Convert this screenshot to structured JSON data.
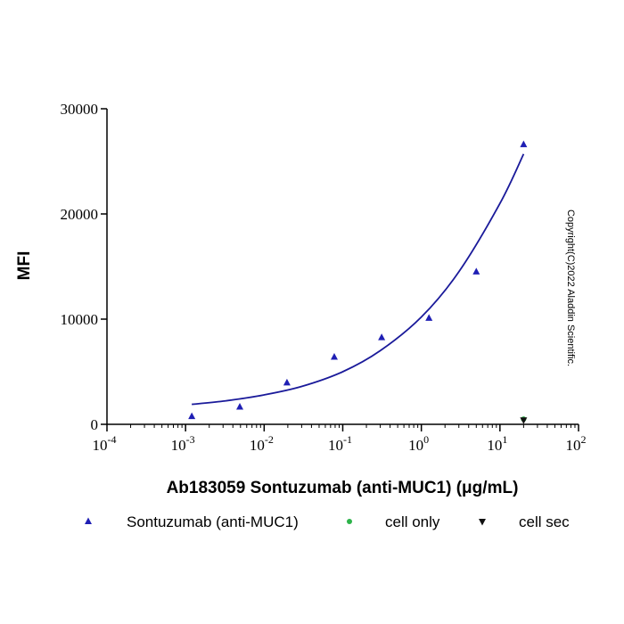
{
  "chart_data": {
    "type": "scatter",
    "title": "",
    "xlabel": "Ab183059 Sontuzumab (anti-MUC1) (μg/mL)",
    "ylabel": "MFI",
    "xscale": "log",
    "xlim": [
      0.0001,
      100
    ],
    "ylim": [
      0,
      30000
    ],
    "x_ticks": [
      {
        "base": "10",
        "exp": "-4",
        "value": 0.0001
      },
      {
        "base": "10",
        "exp": "-3",
        "value": 0.001
      },
      {
        "base": "10",
        "exp": "-2",
        "value": 0.01
      },
      {
        "base": "10",
        "exp": "-1",
        "value": 0.1
      },
      {
        "base": "10",
        "exp": "0",
        "value": 1
      },
      {
        "base": "10",
        "exp": "1",
        "value": 10
      },
      {
        "base": "10",
        "exp": "2",
        "value": 100
      }
    ],
    "y_ticks": [
      {
        "label": "0",
        "value": 0
      },
      {
        "label": "10000",
        "value": 10000
      },
      {
        "label": "20000",
        "value": 20000
      },
      {
        "label": "30000",
        "value": 30000
      }
    ],
    "grid": false,
    "legend_position": "bottom",
    "series": [
      {
        "name": "Sontuzumab (anti-MUC1)",
        "marker": "triangle-up",
        "color": "#1f1fb4",
        "x": [
          0.0012,
          0.0049,
          0.0195,
          0.078,
          0.3125,
          1.25,
          5,
          20
        ],
        "y": [
          750,
          1650,
          3950,
          6400,
          8250,
          10100,
          14500,
          26600
        ]
      },
      {
        "name": "cell only",
        "marker": "circle",
        "color": "#2db34a",
        "x": [
          20
        ],
        "y": [
          500
        ]
      },
      {
        "name": "cell sec",
        "marker": "triangle-down",
        "color": "#111111",
        "x": [
          20
        ],
        "y": [
          400
        ]
      }
    ],
    "fit_curve": {
      "series": "Sontuzumab (anti-MUC1)",
      "color": "#1a1a9a",
      "x": [
        0.0012,
        0.003,
        0.01,
        0.03,
        0.1,
        0.3,
        1,
        3,
        10,
        20
      ],
      "y": [
        1900,
        2200,
        2800,
        3600,
        5000,
        7000,
        10200,
        14500,
        21000,
        25700
      ]
    },
    "annotation": "Copyright(C)2022 Aladdin Scientific."
  }
}
